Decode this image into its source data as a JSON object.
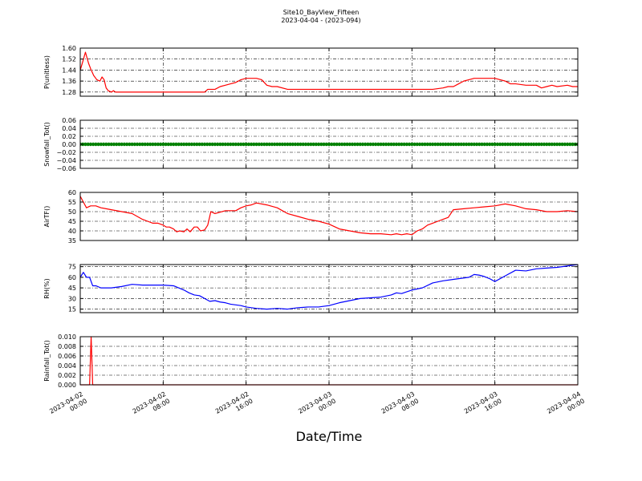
{
  "title": "Site10_BayView_Fifteen",
  "subtitle": "2023-04-04 - (2023-094)",
  "xlabel": "Date/Time",
  "x_tick_labels": [
    [
      "2023-04-02",
      "00:00"
    ],
    [
      "2023-04-02",
      "08:00"
    ],
    [
      "2023-04-02",
      "16:00"
    ],
    [
      "2023-04-03",
      "00:00"
    ],
    [
      "2023-04-03",
      "08:00"
    ],
    [
      "2023-04-03",
      "16:00"
    ],
    [
      "2023-04-04",
      "00:00"
    ]
  ],
  "chart_data": [
    {
      "type": "line",
      "ylabel": "P(unitless)",
      "ylim": [
        1.25,
        1.6
      ],
      "yticks": [
        1.28,
        1.36,
        1.44,
        1.52,
        1.6
      ],
      "ytick_labels": [
        "1.28",
        "1.36",
        "1.44",
        "1.52",
        "1.60"
      ],
      "color": "#ff0000",
      "x": [
        0,
        0.2,
        0.5,
        0.8,
        1.0,
        1.3,
        1.6,
        1.9,
        2.1,
        2.3,
        2.5,
        2.7,
        3.0,
        3.2,
        3.4,
        3.6,
        4,
        5,
        6,
        7,
        8,
        9,
        10,
        11,
        12,
        12.3,
        13,
        13.5,
        14,
        14.5,
        15,
        15.5,
        16,
        16.5,
        17,
        17.5,
        18,
        18.5,
        19,
        20,
        22,
        24,
        26,
        28,
        30,
        32,
        34,
        35,
        35.5,
        36,
        36.5,
        37,
        37.5,
        38,
        39,
        40,
        40.5,
        41,
        41.5,
        42,
        43,
        44,
        44.5,
        45,
        45.5,
        46,
        47,
        47.5,
        48
      ],
      "y": [
        1.44,
        1.49,
        1.57,
        1.49,
        1.45,
        1.4,
        1.37,
        1.36,
        1.39,
        1.37,
        1.31,
        1.29,
        1.28,
        1.29,
        1.28,
        1.28,
        1.28,
        1.28,
        1.28,
        1.28,
        1.28,
        1.28,
        1.28,
        1.28,
        1.28,
        1.3,
        1.3,
        1.32,
        1.33,
        1.34,
        1.35,
        1.37,
        1.38,
        1.38,
        1.38,
        1.37,
        1.33,
        1.32,
        1.32,
        1.3,
        1.3,
        1.3,
        1.3,
        1.3,
        1.3,
        1.3,
        1.3,
        1.31,
        1.32,
        1.32,
        1.34,
        1.36,
        1.37,
        1.38,
        1.38,
        1.38,
        1.37,
        1.36,
        1.34,
        1.34,
        1.33,
        1.33,
        1.31,
        1.32,
        1.33,
        1.32,
        1.33,
        1.32,
        1.32
      ]
    },
    {
      "type": "scatter",
      "ylabel": "Snowfall_Tot()",
      "ylim": [
        -0.06,
        0.06
      ],
      "yticks": [
        -0.06,
        -0.04,
        -0.02,
        0.0,
        0.02,
        0.04,
        0.06
      ],
      "ytick_labels": [
        "−0.06",
        "−0.04",
        "−0.02",
        "0.00",
        "0.02",
        "0.04",
        "0.06"
      ],
      "color": "#008000",
      "x_start": 0,
      "x_end": 48,
      "x_step": 0.25,
      "value": 0.0
    },
    {
      "type": "line",
      "ylabel": "AirTF()",
      "ylim": [
        35,
        60
      ],
      "yticks": [
        35,
        40,
        45,
        50,
        55,
        60
      ],
      "ytick_labels": [
        "35",
        "40",
        "45",
        "50",
        "55",
        "60"
      ],
      "color": "#ff0000",
      "x": [
        0,
        0.3,
        0.6,
        1.0,
        1.5,
        2,
        3,
        4,
        5,
        6,
        6.5,
        7,
        7.5,
        8,
        8.3,
        8.6,
        9,
        9.3,
        9.6,
        10,
        10.3,
        10.6,
        11,
        11.3,
        11.6,
        12,
        12.3,
        12.6,
        13,
        14,
        15,
        15.5,
        16,
        16.5,
        17,
        18,
        19,
        20,
        21,
        22,
        23,
        24,
        25,
        26,
        27,
        28,
        29,
        30,
        30.5,
        31,
        31.5,
        32,
        32.5,
        33,
        33.5,
        34,
        34.5,
        35,
        35.5,
        36,
        37,
        38,
        39,
        40,
        41,
        42,
        43,
        44,
        45,
        46,
        47,
        48
      ],
      "y": [
        58,
        55,
        52,
        53,
        53,
        52,
        51,
        50,
        49,
        46,
        45,
        44,
        44,
        43,
        42,
        42,
        41,
        39.5,
        40,
        39.5,
        41,
        39.5,
        42,
        42,
        40,
        40.5,
        43,
        50,
        49,
        50.5,
        50.5,
        52,
        53,
        53.5,
        54.5,
        53.5,
        52,
        49,
        47.5,
        46,
        45,
        43.5,
        41,
        40,
        39,
        38.5,
        38.5,
        38,
        38.5,
        38,
        38.5,
        38,
        40,
        41,
        43,
        44,
        45,
        46,
        47,
        51,
        51.5,
        52,
        52.5,
        53,
        54,
        53,
        51.5,
        51,
        50,
        50,
        50.5,
        50
      ]
    },
    {
      "type": "line",
      "ylabel": "RH(%)",
      "ylim": [
        10,
        78
      ],
      "yticks": [
        15,
        30,
        45,
        60,
        75
      ],
      "ytick_labels": [
        "15",
        "30",
        "45",
        "60",
        "75"
      ],
      "color": "#0000ff",
      "x": [
        0,
        0.3,
        0.6,
        0.9,
        1.2,
        1.5,
        2,
        2.5,
        3,
        4,
        5,
        6,
        7,
        8,
        9,
        10,
        10.5,
        11,
        11.5,
        12,
        12.5,
        13,
        13.5,
        14,
        14.5,
        15,
        15.5,
        16,
        17,
        18,
        19,
        20,
        21,
        22,
        23,
        24,
        25,
        26,
        27,
        28,
        29,
        30,
        30.5,
        31,
        32,
        33,
        34,
        35,
        36,
        37,
        37.5,
        38,
        38.5,
        39,
        39.5,
        40,
        41,
        42,
        43,
        44,
        45,
        46,
        47,
        48
      ],
      "y": [
        60,
        67,
        60,
        60,
        48,
        48,
        45,
        45,
        45,
        47,
        50,
        49,
        49,
        49,
        48,
        42,
        38,
        35,
        34,
        30,
        26,
        27,
        25,
        24,
        22,
        21,
        20,
        18,
        16,
        15,
        16,
        15,
        17,
        18,
        18,
        20,
        24,
        27,
        30,
        31,
        32,
        35,
        38,
        37,
        42,
        45,
        52,
        55,
        57,
        59,
        60,
        64,
        63,
        61,
        58,
        54,
        62,
        70,
        69,
        72,
        73,
        74,
        76,
        78
      ]
    },
    {
      "type": "line",
      "ylabel": "Rainfall_Tot()",
      "ylim": [
        0,
        0.01
      ],
      "yticks": [
        0.0,
        0.002,
        0.004,
        0.006,
        0.008,
        0.01
      ],
      "ytick_labels": [
        "0.000",
        "0.002",
        "0.004",
        "0.006",
        "0.008",
        "0.010"
      ],
      "color": "#ff0000",
      "x": [
        0,
        0.75,
        0.9,
        1.05,
        1.2,
        1.35,
        48
      ],
      "y": [
        0,
        0,
        0,
        0.01,
        0,
        0,
        0
      ]
    }
  ]
}
